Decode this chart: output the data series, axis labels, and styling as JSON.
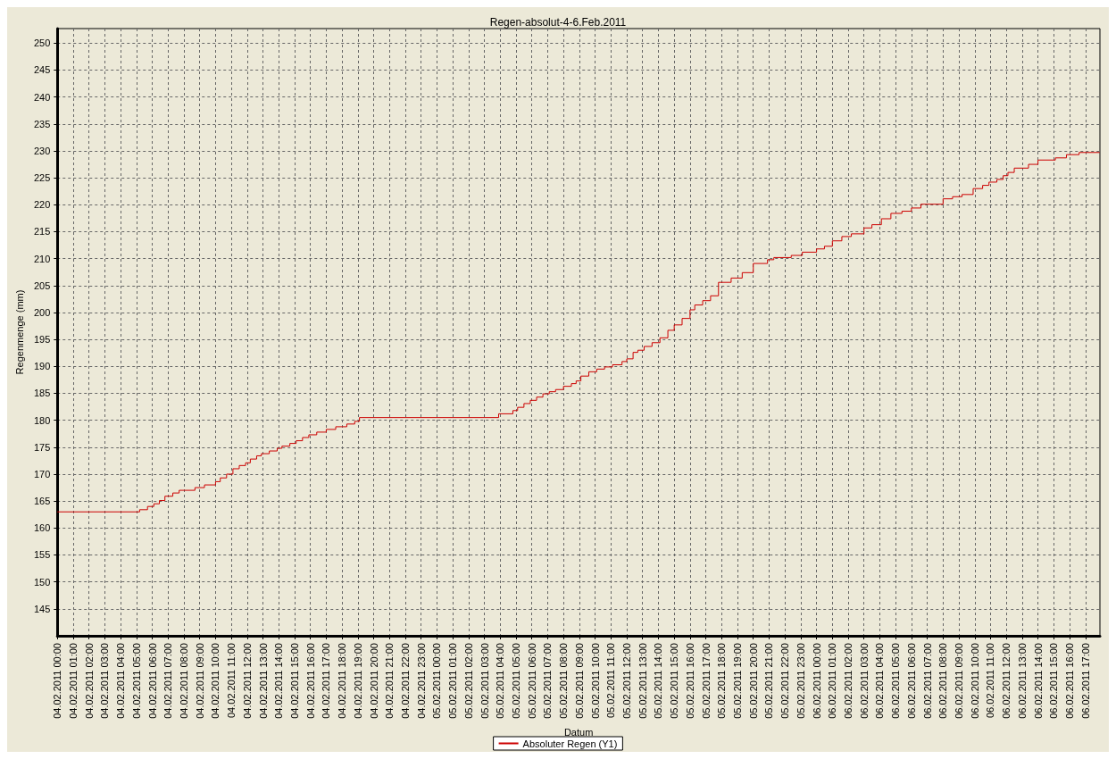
{
  "chart_data": {
    "type": "step",
    "title": "Regen-absolut-4-6.Feb.2011",
    "xlabel": "Datum",
    "ylabel": "Regenmenge (mm)",
    "x": [
      "2011-02-04T00:00",
      "2011-02-04T05:12",
      "2011-02-04T05:42",
      "2011-02-04T06:06",
      "2011-02-04T06:27",
      "2011-02-04T06:48",
      "2011-02-04T07:18",
      "2011-02-04T07:42",
      "2011-02-04T08:42",
      "2011-02-04T09:18",
      "2011-02-04T10:00",
      "2011-02-04T10:18",
      "2011-02-04T10:42",
      "2011-02-04T11:06",
      "2011-02-04T11:30",
      "2011-02-04T11:54",
      "2011-02-04T12:12",
      "2011-02-04T12:36",
      "2011-02-04T12:54",
      "2011-02-04T13:24",
      "2011-02-04T13:54",
      "2011-02-04T14:12",
      "2011-02-04T14:42",
      "2011-02-04T15:06",
      "2011-02-04T15:30",
      "2011-02-04T15:54",
      "2011-02-04T16:24",
      "2011-02-04T17:00",
      "2011-02-04T17:36",
      "2011-02-04T18:18",
      "2011-02-04T18:48",
      "2011-02-04T19:06",
      "2011-02-05T03:54",
      "2011-02-05T04:48",
      "2011-02-05T05:06",
      "2011-02-05T05:30",
      "2011-02-05T05:54",
      "2011-02-05T06:18",
      "2011-02-05T06:42",
      "2011-02-05T07:06",
      "2011-02-05T07:30",
      "2011-02-05T08:00",
      "2011-02-05T08:30",
      "2011-02-05T08:48",
      "2011-02-05T09:06",
      "2011-02-05T09:36",
      "2011-02-05T10:06",
      "2011-02-05T10:36",
      "2011-02-05T11:06",
      "2011-02-05T11:42",
      "2011-02-05T12:00",
      "2011-02-05T12:24",
      "2011-02-05T12:42",
      "2011-02-05T13:06",
      "2011-02-05T13:36",
      "2011-02-05T14:06",
      "2011-02-05T14:36",
      "2011-02-05T15:00",
      "2011-02-05T15:30",
      "2011-02-05T16:00",
      "2011-02-05T16:18",
      "2011-02-05T16:48",
      "2011-02-05T17:18",
      "2011-02-05T17:48",
      "2011-02-05T18:36",
      "2011-02-05T19:18",
      "2011-02-05T20:00",
      "2011-02-05T20:54",
      "2011-02-05T21:18",
      "2011-02-05T22:24",
      "2011-02-05T23:06",
      "2011-02-06T00:00",
      "2011-02-06T00:30",
      "2011-02-06T01:00",
      "2011-02-06T01:36",
      "2011-02-06T02:12",
      "2011-02-06T03:00",
      "2011-02-06T03:30",
      "2011-02-06T04:06",
      "2011-02-06T04:42",
      "2011-02-06T05:24",
      "2011-02-06T06:00",
      "2011-02-06T06:36",
      "2011-02-06T08:00",
      "2011-02-06T08:36",
      "2011-02-06T09:12",
      "2011-02-06T09:54",
      "2011-02-06T10:30",
      "2011-02-06T10:54",
      "2011-02-06T11:24",
      "2011-02-06T11:48",
      "2011-02-06T12:06",
      "2011-02-06T12:30",
      "2011-02-06T13:24",
      "2011-02-06T14:00",
      "2011-02-06T15:06",
      "2011-02-06T15:48",
      "2011-02-06T16:36",
      "2011-02-06T17:54"
    ],
    "series": [
      {
        "name": "Absoluter Regen (Y1)",
        "color": "#cc0000",
        "values": [
          163.0,
          163.4,
          164.0,
          164.5,
          165.1,
          165.9,
          166.5,
          167.0,
          167.5,
          168.0,
          168.6,
          169.3,
          170.0,
          171.0,
          171.6,
          172.1,
          172.8,
          173.4,
          173.8,
          174.3,
          174.8,
          175.2,
          175.7,
          176.2,
          176.8,
          177.3,
          177.8,
          178.3,
          178.8,
          179.3,
          179.8,
          180.5,
          181.2,
          181.8,
          182.4,
          183.1,
          183.7,
          184.3,
          184.9,
          185.3,
          185.7,
          186.3,
          186.8,
          187.3,
          188.2,
          189.0,
          189.5,
          189.9,
          190.3,
          190.9,
          191.4,
          192.6,
          193.0,
          193.7,
          194.4,
          195.3,
          196.7,
          197.7,
          198.9,
          200.5,
          201.4,
          202.2,
          203.1,
          205.6,
          206.4,
          207.4,
          209.1,
          209.8,
          210.2,
          210.6,
          211.2,
          211.8,
          212.3,
          213.3,
          214.1,
          214.6,
          215.7,
          216.3,
          217.4,
          218.4,
          218.8,
          219.4,
          220.1,
          221.1,
          221.5,
          221.9,
          223.0,
          223.6,
          224.2,
          224.7,
          225.4,
          226.0,
          226.8,
          227.5,
          228.3,
          228.7,
          229.3,
          229.7,
          229.7
        ]
      }
    ],
    "xlim": [
      "2011-02-04T00:00",
      "2011-02-06T17:55"
    ],
    "xticks": [
      {
        "value": "2011-02-04T00:00",
        "label": "04.02.2011 00:00"
      },
      {
        "value": "2011-02-04T01:00",
        "label": "04.02.2011 01:00"
      },
      {
        "value": "2011-02-04T02:00",
        "label": "04.02.2011 02:00"
      },
      {
        "value": "2011-02-04T03:00",
        "label": "04.02.2011 03:00"
      },
      {
        "value": "2011-02-04T04:00",
        "label": "04.02.2011 04:00"
      },
      {
        "value": "2011-02-04T05:00",
        "label": "04.02.2011 05:00"
      },
      {
        "value": "2011-02-04T06:00",
        "label": "04.02.2011 06:00"
      },
      {
        "value": "2011-02-04T07:00",
        "label": "04.02.2011 07:00"
      },
      {
        "value": "2011-02-04T08:00",
        "label": "04.02.2011 08:00"
      },
      {
        "value": "2011-02-04T09:00",
        "label": "04.02.2011 09:00"
      },
      {
        "value": "2011-02-04T10:00",
        "label": "04.02.2011 10:00"
      },
      {
        "value": "2011-02-04T11:00",
        "label": "04.02.2011 11:00"
      },
      {
        "value": "2011-02-04T12:00",
        "label": "04.02.2011 12:00"
      },
      {
        "value": "2011-02-04T13:00",
        "label": "04.02.2011 13:00"
      },
      {
        "value": "2011-02-04T14:00",
        "label": "04.02.2011 14:00"
      },
      {
        "value": "2011-02-04T15:00",
        "label": "04.02.2011 15:00"
      },
      {
        "value": "2011-02-04T16:00",
        "label": "04.02.2011 16:00"
      },
      {
        "value": "2011-02-04T17:00",
        "label": "04.02.2011 17:00"
      },
      {
        "value": "2011-02-04T18:00",
        "label": "04.02.2011 18:00"
      },
      {
        "value": "2011-02-04T19:00",
        "label": "04.02.2011 19:00"
      },
      {
        "value": "2011-02-04T20:00",
        "label": "04.02.2011 20:00"
      },
      {
        "value": "2011-02-04T21:00",
        "label": "04.02.2011 21:00"
      },
      {
        "value": "2011-02-04T22:00",
        "label": "04.02.2011 22:00"
      },
      {
        "value": "2011-02-04T23:00",
        "label": "04.02.2011 23:00"
      },
      {
        "value": "2011-02-05T00:00",
        "label": "05.02.2011 00:00"
      },
      {
        "value": "2011-02-05T01:00",
        "label": "05.02.2011 01:00"
      },
      {
        "value": "2011-02-05T02:00",
        "label": "05.02.2011 02:00"
      },
      {
        "value": "2011-02-05T03:00",
        "label": "05.02.2011 03:00"
      },
      {
        "value": "2011-02-05T04:00",
        "label": "05.02.2011 04:00"
      },
      {
        "value": "2011-02-05T05:00",
        "label": "05.02.2011 05:00"
      },
      {
        "value": "2011-02-05T06:00",
        "label": "05.02.2011 06:00"
      },
      {
        "value": "2011-02-05T07:00",
        "label": "05.02.2011 07:00"
      },
      {
        "value": "2011-02-05T08:00",
        "label": "05.02.2011 08:00"
      },
      {
        "value": "2011-02-05T09:00",
        "label": "05.02.2011 09:00"
      },
      {
        "value": "2011-02-05T10:00",
        "label": "05.02.2011 10:00"
      },
      {
        "value": "2011-02-05T11:00",
        "label": "05.02.2011 11:00"
      },
      {
        "value": "2011-02-05T12:00",
        "label": "05.02.2011 12:00"
      },
      {
        "value": "2011-02-05T13:00",
        "label": "05.02.2011 13:00"
      },
      {
        "value": "2011-02-05T14:00",
        "label": "05.02.2011 14:00"
      },
      {
        "value": "2011-02-05T15:00",
        "label": "05.02.2011 15:00"
      },
      {
        "value": "2011-02-05T16:00",
        "label": "05.02.2011 16:00"
      },
      {
        "value": "2011-02-05T17:00",
        "label": "05.02.2011 17:00"
      },
      {
        "value": "2011-02-05T18:00",
        "label": "05.02.2011 18:00"
      },
      {
        "value": "2011-02-05T19:00",
        "label": "05.02.2011 19:00"
      },
      {
        "value": "2011-02-05T20:00",
        "label": "05.02.2011 20:00"
      },
      {
        "value": "2011-02-05T21:00",
        "label": "05.02.2011 21:00"
      },
      {
        "value": "2011-02-05T22:00",
        "label": "05.02.2011 22:00"
      },
      {
        "value": "2011-02-05T23:00",
        "label": "05.02.2011 23:00"
      },
      {
        "value": "2011-02-06T00:00",
        "label": "06.02.2011 00:00"
      },
      {
        "value": "2011-02-06T01:00",
        "label": "06.02.2011 01:00"
      },
      {
        "value": "2011-02-06T02:00",
        "label": "06.02.2011 02:00"
      },
      {
        "value": "2011-02-06T03:00",
        "label": "06.02.2011 03:00"
      },
      {
        "value": "2011-02-06T04:00",
        "label": "06.02.2011 04:00"
      },
      {
        "value": "2011-02-06T05:00",
        "label": "06.02.2011 05:00"
      },
      {
        "value": "2011-02-06T06:00",
        "label": "06.02.2011 06:00"
      },
      {
        "value": "2011-02-06T07:00",
        "label": "06.02.2011 07:00"
      },
      {
        "value": "2011-02-06T08:00",
        "label": "06.02.2011 08:00"
      },
      {
        "value": "2011-02-06T09:00",
        "label": "06.02.2011 09:00"
      },
      {
        "value": "2011-02-06T10:00",
        "label": "06.02.2011 10:00"
      },
      {
        "value": "2011-02-06T11:00",
        "label": "06.02.2011 11:00"
      },
      {
        "value": "2011-02-06T12:00",
        "label": "06.02.2011 12:00"
      },
      {
        "value": "2011-02-06T13:00",
        "label": "06.02.2011 13:00"
      },
      {
        "value": "2011-02-06T14:00",
        "label": "06.02.2011 14:00"
      },
      {
        "value": "2011-02-06T15:00",
        "label": "06.02.2011 15:00"
      },
      {
        "value": "2011-02-06T16:00",
        "label": "06.02.2011 16:00"
      },
      {
        "value": "2011-02-06T17:00",
        "label": "06.02.2011 17:00"
      }
    ],
    "ylim": [
      140,
      252.7
    ],
    "yticks": [
      145,
      150,
      155,
      160,
      165,
      170,
      175,
      180,
      185,
      190,
      195,
      200,
      205,
      210,
      215,
      220,
      225,
      230,
      235,
      240,
      245,
      250
    ],
    "grid": true,
    "legend": "bottom",
    "marker": "none",
    "line_style": "solid"
  }
}
